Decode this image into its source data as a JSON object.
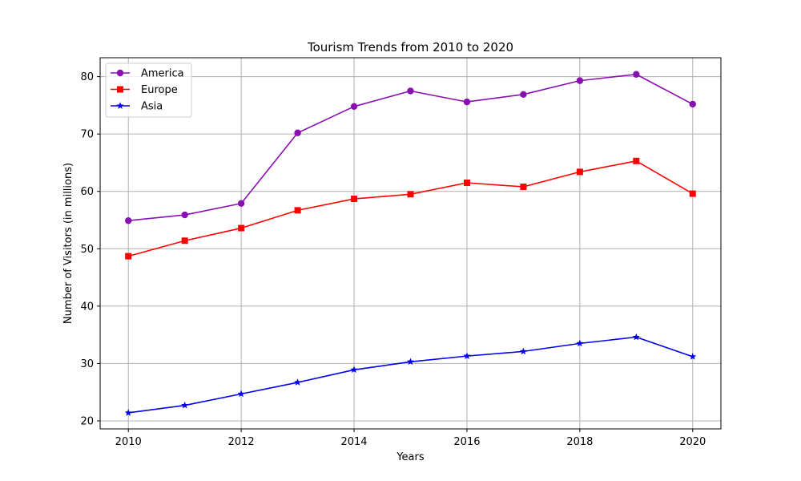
{
  "chart_data": {
    "type": "line",
    "title": "Tourism Trends from 2010 to 2020",
    "xlabel": "Years",
    "ylabel": "Number of Visitors (in millions)",
    "x": [
      2010,
      2011,
      2012,
      2013,
      2014,
      2015,
      2016,
      2017,
      2018,
      2019,
      2020
    ],
    "xlim": [
      2009.5,
      2020.5
    ],
    "ylim": [
      18.6,
      83.3
    ],
    "xticks": [
      "2010",
      "2012",
      "2014",
      "2016",
      "2018",
      "2020"
    ],
    "yticks": [
      "20",
      "30",
      "40",
      "50",
      "60",
      "70",
      "80"
    ],
    "grid": true,
    "legend_position": "upper-left",
    "series": [
      {
        "name": "America",
        "color": "#8a0fb0",
        "marker": "circle",
        "values": [
          54.9,
          55.9,
          57.9,
          70.2,
          74.8,
          77.5,
          75.6,
          76.9,
          79.3,
          80.4,
          75.2
        ]
      },
      {
        "name": "Europe",
        "color": "#ff0000",
        "marker": "square",
        "values": [
          48.7,
          51.4,
          53.6,
          56.7,
          58.7,
          59.5,
          61.5,
          60.8,
          63.4,
          65.3,
          59.6
        ]
      },
      {
        "name": "Asia",
        "color": "#0000ee",
        "marker": "star",
        "values": [
          21.4,
          22.7,
          24.7,
          26.7,
          28.9,
          30.3,
          31.3,
          32.1,
          33.5,
          34.6,
          31.2
        ]
      }
    ]
  }
}
